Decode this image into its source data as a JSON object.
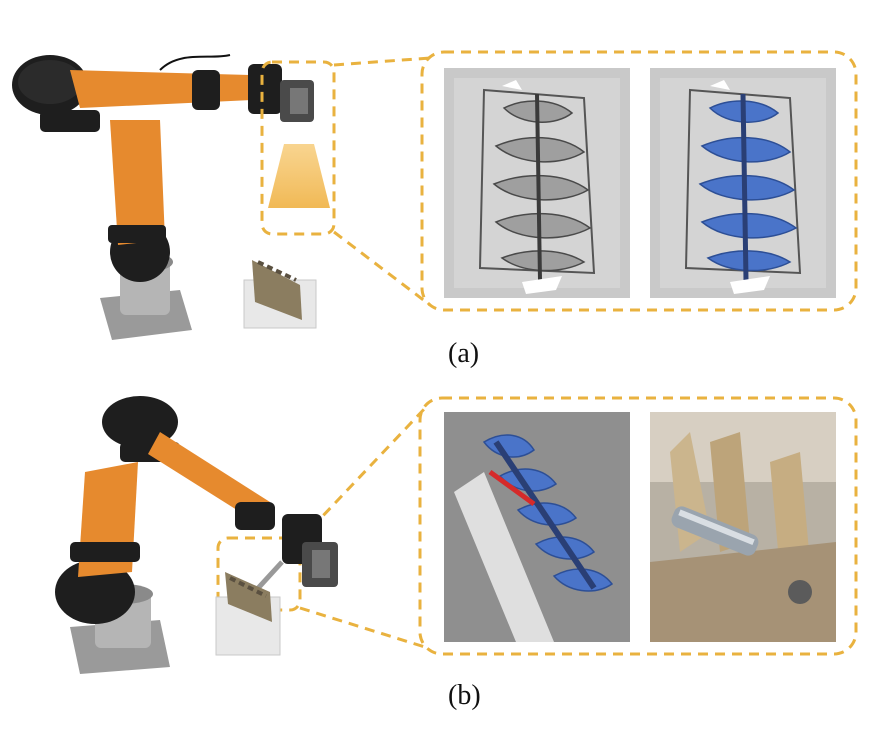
{
  "figure": {
    "caption_a": "(a)",
    "caption_b": "(b)",
    "accent_color": "#E9B23F",
    "robot_orange": "#E68A2E"
  },
  "panels": {
    "a_left": "robot-arm-with-3d-camera-scanning-spine-model",
    "a_middle": "grayscale-point-cloud-of-spine",
    "a_right": "point-cloud-with-registered-blue-spine-model",
    "b_left": "robot-arm-with-drill-at-spine-model",
    "b_middle": "registered-blue-spine-on-point-cloud-with-red-trajectory",
    "b_right": "photo-of-drill-bit-on-vertebra"
  }
}
